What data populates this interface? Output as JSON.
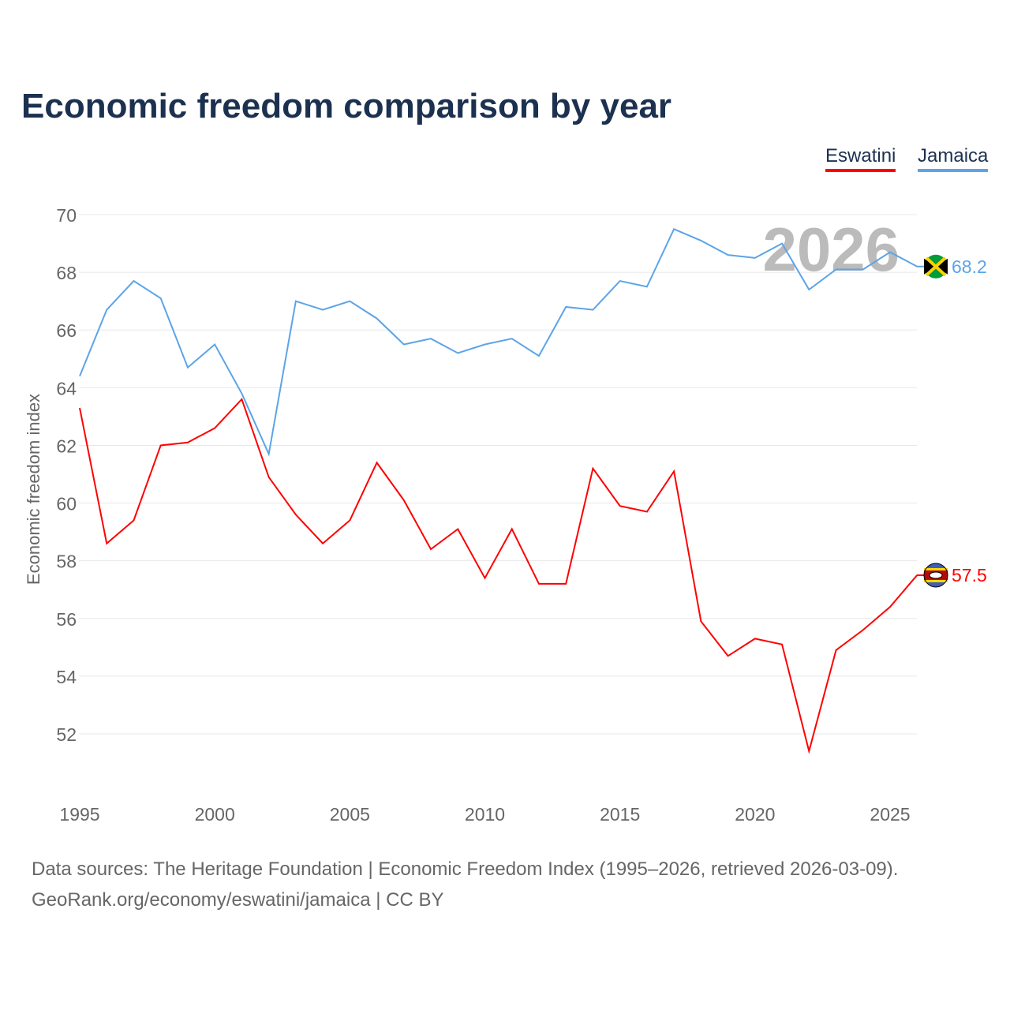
{
  "chart_data": {
    "type": "line",
    "title": "Economic freedom comparison by year",
    "xlabel": "",
    "ylabel": "Economic freedom index",
    "xlim": [
      1995,
      2026
    ],
    "ylim": [
      50,
      70
    ],
    "yticks": [
      52,
      54,
      56,
      58,
      60,
      62,
      64,
      66,
      68,
      70
    ],
    "xticks": [
      1995,
      2000,
      2005,
      2010,
      2015,
      2020,
      2025
    ],
    "grid": true,
    "legend_position": "top-right",
    "year_watermark": "2026",
    "x": [
      1995,
      1996,
      1997,
      1998,
      1999,
      2000,
      2001,
      2002,
      2003,
      2004,
      2005,
      2006,
      2007,
      2008,
      2009,
      2010,
      2011,
      2012,
      2013,
      2014,
      2015,
      2016,
      2017,
      2018,
      2019,
      2020,
      2021,
      2022,
      2023,
      2024,
      2025,
      2026
    ],
    "series": [
      {
        "name": "Eswatini",
        "color": "#ff0000",
        "end_label": "57.5",
        "values": [
          63.3,
          58.6,
          59.4,
          62.0,
          62.1,
          62.6,
          63.6,
          60.9,
          59.6,
          58.6,
          59.4,
          61.4,
          60.1,
          58.4,
          59.1,
          57.4,
          59.1,
          57.2,
          57.2,
          61.2,
          59.9,
          59.7,
          61.1,
          55.9,
          54.7,
          55.3,
          55.1,
          51.4,
          54.9,
          55.6,
          56.4,
          57.5
        ]
      },
      {
        "name": "Jamaica",
        "color": "#5ba4e8",
        "end_label": "68.2",
        "values": [
          64.4,
          66.7,
          67.7,
          67.1,
          64.7,
          65.5,
          63.8,
          61.7,
          67.0,
          66.7,
          67.0,
          66.4,
          65.5,
          65.7,
          65.2,
          65.5,
          65.7,
          65.1,
          66.8,
          66.7,
          67.7,
          67.5,
          69.5,
          69.1,
          68.6,
          68.5,
          69.0,
          67.4,
          68.1,
          68.1,
          68.7,
          68.2
        ]
      }
    ]
  },
  "footer": {
    "line1": "Data sources: The Heritage Foundation | Economic Freedom Index (1995–2026, retrieved 2026-03-09).",
    "line2": "GeoRank.org/economy/eswatini/jamaica | CC BY"
  }
}
